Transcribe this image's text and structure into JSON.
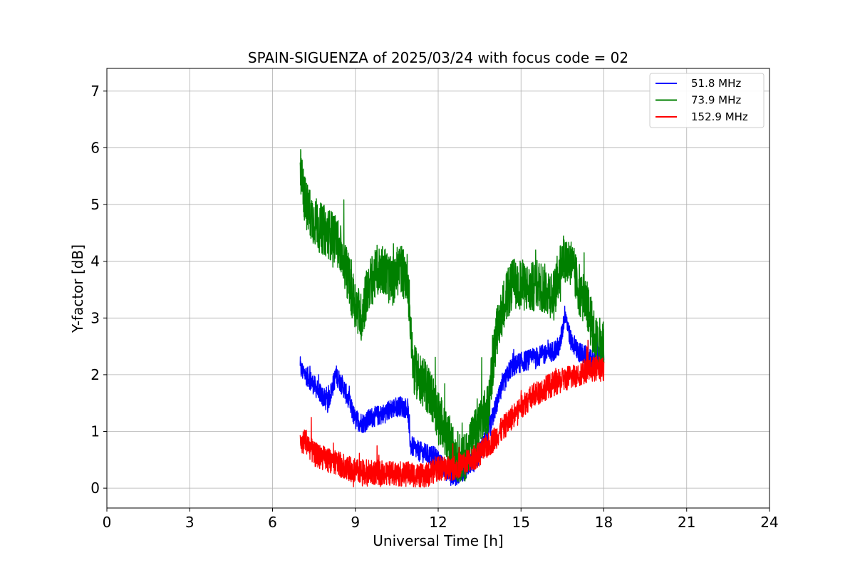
{
  "chart_data": {
    "type": "line",
    "title": "SPAIN-SIGUENZA of 2025/03/24 with focus code = 02",
    "xlabel": "Universal Time [h]",
    "ylabel": "Y-factor [dB]",
    "xlim": [
      0,
      24
    ],
    "ylim": [
      -0.35,
      7.4
    ],
    "xticks": [
      "0",
      "3",
      "6",
      "9",
      "12",
      "15",
      "18",
      "21",
      "24"
    ],
    "yticks": [
      "0",
      "1",
      "2",
      "3",
      "4",
      "5",
      "6",
      "7"
    ],
    "grid": true,
    "legend_position": "top-right",
    "series": [
      {
        "name": "51.8 MHz",
        "color": "#0000ff",
        "x": [
          7.0,
          7.3,
          7.6,
          8.0,
          8.3,
          8.6,
          9.0,
          9.3,
          9.6,
          10.0,
          10.3,
          10.6,
          10.9,
          11.0,
          11.3,
          11.6,
          11.9,
          12.2,
          12.5,
          12.8,
          13.1,
          13.4,
          13.7,
          14.0,
          14.3,
          14.6,
          14.9,
          15.2,
          15.5,
          15.8,
          16.1,
          16.4,
          16.6,
          16.8,
          17.1,
          17.4,
          17.7,
          18.0
        ],
        "y": [
          2.1,
          1.95,
          1.75,
          1.5,
          2.0,
          1.75,
          1.2,
          1.15,
          1.25,
          1.3,
          1.4,
          1.45,
          1.4,
          0.75,
          0.65,
          0.6,
          0.55,
          0.35,
          0.2,
          0.25,
          0.4,
          0.5,
          0.85,
          1.3,
          1.75,
          2.1,
          2.2,
          2.25,
          2.3,
          2.35,
          2.4,
          2.5,
          3.1,
          2.6,
          2.4,
          2.3,
          2.2,
          2.4
        ],
        "noise": 0.18
      },
      {
        "name": "73.9 MHz",
        "color": "#008000",
        "x": [
          7.0,
          7.2,
          7.4,
          7.7,
          8.0,
          8.3,
          8.6,
          8.9,
          9.2,
          9.5,
          9.8,
          10.0,
          10.3,
          10.6,
          10.9,
          11.1,
          11.4,
          11.7,
          12.0,
          12.3,
          12.6,
          12.9,
          13.2,
          13.5,
          13.8,
          14.1,
          14.4,
          14.7,
          15.0,
          15.3,
          15.6,
          15.9,
          16.2,
          16.5,
          16.8,
          17.1,
          17.4,
          17.7,
          18.0
        ],
        "y": [
          5.6,
          5.0,
          4.8,
          4.6,
          4.5,
          4.4,
          4.0,
          3.4,
          3.0,
          3.6,
          3.8,
          3.9,
          3.6,
          3.9,
          3.7,
          2.1,
          1.9,
          1.7,
          1.3,
          0.9,
          0.6,
          0.5,
          0.8,
          1.1,
          1.4,
          2.7,
          3.3,
          3.6,
          3.6,
          3.5,
          3.6,
          3.5,
          3.4,
          4.1,
          4.0,
          3.5,
          3.2,
          2.6,
          2.5
        ],
        "noise": 0.45
      },
      {
        "name": "152.9 MHz",
        "color": "#ff0000",
        "x": [
          7.0,
          7.2,
          7.5,
          8.0,
          8.5,
          9.0,
          9.5,
          10.0,
          10.5,
          11.0,
          11.5,
          12.0,
          12.5,
          13.0,
          13.5,
          14.0,
          14.5,
          15.0,
          15.5,
          16.0,
          16.5,
          17.0,
          17.5,
          18.0
        ],
        "y": [
          0.75,
          0.85,
          0.6,
          0.5,
          0.4,
          0.3,
          0.28,
          0.27,
          0.25,
          0.25,
          0.2,
          0.35,
          0.35,
          0.45,
          0.6,
          0.85,
          1.15,
          1.45,
          1.65,
          1.8,
          1.9,
          2.0,
          2.1,
          2.1
        ],
        "noise": 0.22
      }
    ]
  }
}
